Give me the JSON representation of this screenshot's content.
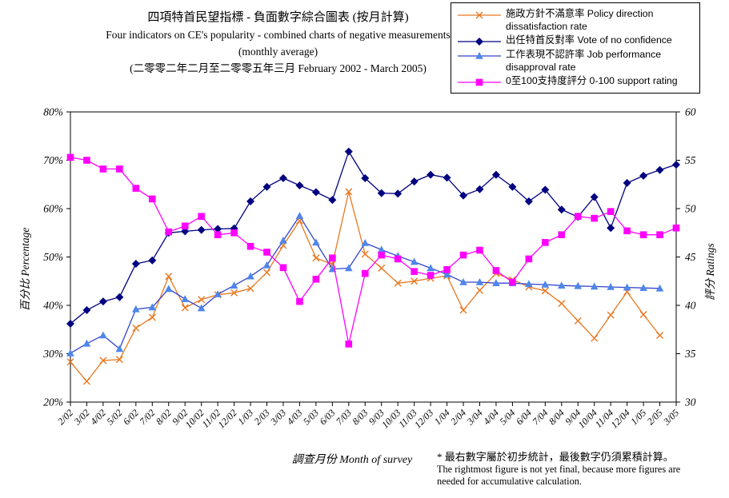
{
  "title": {
    "line1": "四項特首民望指標 - 負面數字綜合圖表 (按月計算)",
    "line2": "Four indicators on CE's popularity - combined charts of negative measurements",
    "line3": "(monthly average)",
    "line4": "(二零零二年二月至二零零五年三月 February 2002 - March 2005)"
  },
  "footer": {
    "xaxis_title": "調查月份  Month of survey",
    "note_zh": "* 最右數字屬於初步統計，最後數字仍須累積計算。",
    "note_en1": "The rightmost figure is not yet final, because more figures are",
    "note_en2": "needed for accumulative calculation."
  },
  "axes": {
    "left_title": "百分比  Percentage",
    "right_title": "評分  Ratings"
  },
  "chart_data": {
    "type": "line",
    "grid": false,
    "legend_position": "top-right",
    "categories": [
      "2/02",
      "3/02",
      "4/02",
      "5/02",
      "6/02",
      "7/02",
      "8/02",
      "9/02",
      "10/02",
      "11/02",
      "12/02",
      "1/03",
      "2/03",
      "3/03",
      "4/03",
      "5/03",
      "6/03",
      "7/03",
      "8/03",
      "9/03",
      "10/03",
      "11/03",
      "12/03",
      "1/04",
      "2/04",
      "3/04",
      "4/04",
      "5/04",
      "6/04",
      "7/04",
      "8/04",
      "9/04",
      "10/04",
      "11/04",
      "12/04",
      "1/05",
      "2/05",
      "3/05"
    ],
    "left_axis": {
      "min": 20,
      "max": 80,
      "ticks": [
        20,
        30,
        40,
        50,
        60,
        70,
        80
      ],
      "suffix": "%"
    },
    "right_axis": {
      "min": 30,
      "max": 60,
      "ticks": [
        30,
        35,
        40,
        45,
        50,
        55,
        60
      ]
    },
    "series": [
      {
        "id": "policy",
        "label": "施政方針不滿意率 Policy direction dissatisfaction rate",
        "color": "#E87820",
        "marker": "x",
        "axis": "left",
        "values": [
          28.3,
          24.3,
          28.6,
          28.8,
          35.3,
          37.5,
          46,
          39.5,
          41.2,
          42.2,
          42.6,
          43.5,
          46.8,
          52.4,
          57.5,
          49.8,
          48.5,
          63.5,
          50.6,
          47.7,
          44.6,
          45,
          45.6,
          46.1,
          39,
          43.1,
          46.6,
          45.3,
          43.8,
          43,
          40.4,
          36.8,
          33.2,
          38,
          42.8,
          38.1,
          33.8,
          null
        ]
      },
      {
        "id": "confidence",
        "label": "出任特首反對率 Vote of no confidence",
        "color": "#000080",
        "marker": "diamond",
        "axis": "left",
        "values": [
          36.2,
          39,
          40.8,
          41.7,
          48.6,
          49.3,
          55,
          55.3,
          55.6,
          55.8,
          55.9,
          61.5,
          64.5,
          66.3,
          64.8,
          63.4,
          61.8,
          71.8,
          66.3,
          63.2,
          63.1,
          65.6,
          67,
          66.4,
          62.7,
          64,
          67,
          64.5,
          61.5,
          63.9,
          59.8,
          58.3,
          62.4,
          56,
          65.3,
          66.8,
          68,
          69.1
        ]
      },
      {
        "id": "job",
        "label": "工作表現不認許率 Job performance disapproval rate",
        "color": "#3344CC",
        "marker": "triangle",
        "marker_color": "#4E86EA",
        "axis": "left",
        "values": [
          30.1,
          32.1,
          33.8,
          31,
          39.2,
          39.6,
          43.4,
          41.3,
          39.4,
          42.3,
          44.1,
          46,
          48.3,
          53.4,
          58.5,
          53,
          47.5,
          47.7,
          52.9,
          51.5,
          50.2,
          49,
          47.7,
          46.4,
          44.8,
          44.8,
          44.6,
          44.6,
          44.4,
          44.3,
          44.1,
          44,
          43.9,
          43.8,
          43.7,
          43.6,
          43.5,
          null
        ]
      },
      {
        "id": "support",
        "label": "0至100支持度評分 0-100 support rating",
        "color": "#FF00FF",
        "marker": "square",
        "axis": "right",
        "values": [
          55.3,
          55,
          54.1,
          54.1,
          52.1,
          51,
          47.6,
          48.2,
          49.2,
          47.3,
          47.5,
          46.1,
          45.5,
          43.9,
          40.4,
          42.7,
          44.9,
          36,
          43.3,
          45.2,
          44.8,
          43.5,
          43.1,
          43.7,
          45.2,
          45.7,
          43.6,
          42.4,
          44.8,
          46.5,
          47.3,
          49.2,
          49,
          49.7,
          47.7,
          47.3,
          47.3,
          48
        ]
      }
    ]
  }
}
